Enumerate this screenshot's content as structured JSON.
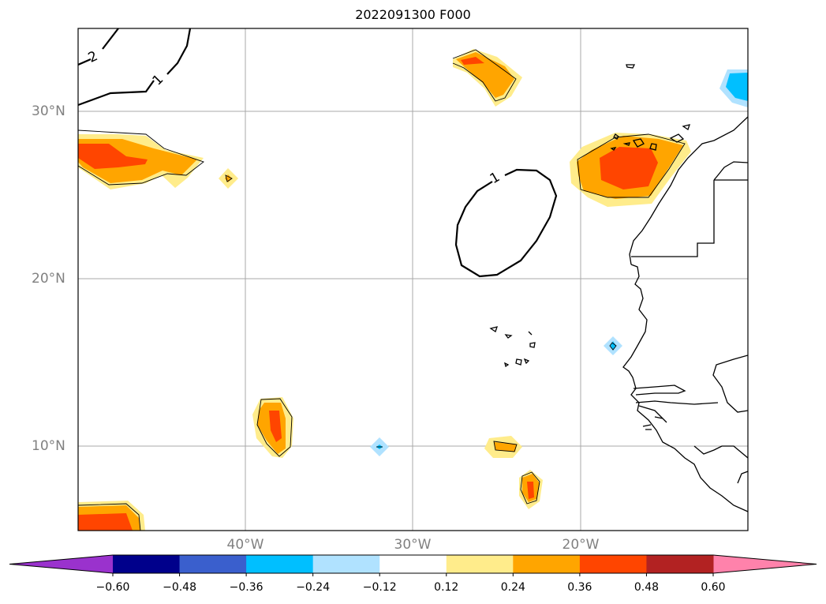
{
  "title": "2022091300 F000",
  "lat_labels": [
    "30°N",
    "20°N",
    "10°N"
  ],
  "lon_labels": [
    "40°W",
    "30°W",
    "20°W"
  ],
  "contour_labels": [
    "2",
    "1",
    "1"
  ],
  "colorbar": {
    "ticks": [
      "−0.60",
      "−0.48",
      "−0.36",
      "−0.24",
      "−0.12",
      "0.12",
      "0.24",
      "0.36",
      "0.48",
      "0.60"
    ],
    "colors": [
      "#9a32cd",
      "#00008b",
      "#3a5fcd",
      "#00bfff",
      "#b0e2ff",
      "#ffffff",
      "#ffec8b",
      "#ffa500",
      "#ff4500",
      "#b22222",
      "#ff82ab"
    ]
  }
}
